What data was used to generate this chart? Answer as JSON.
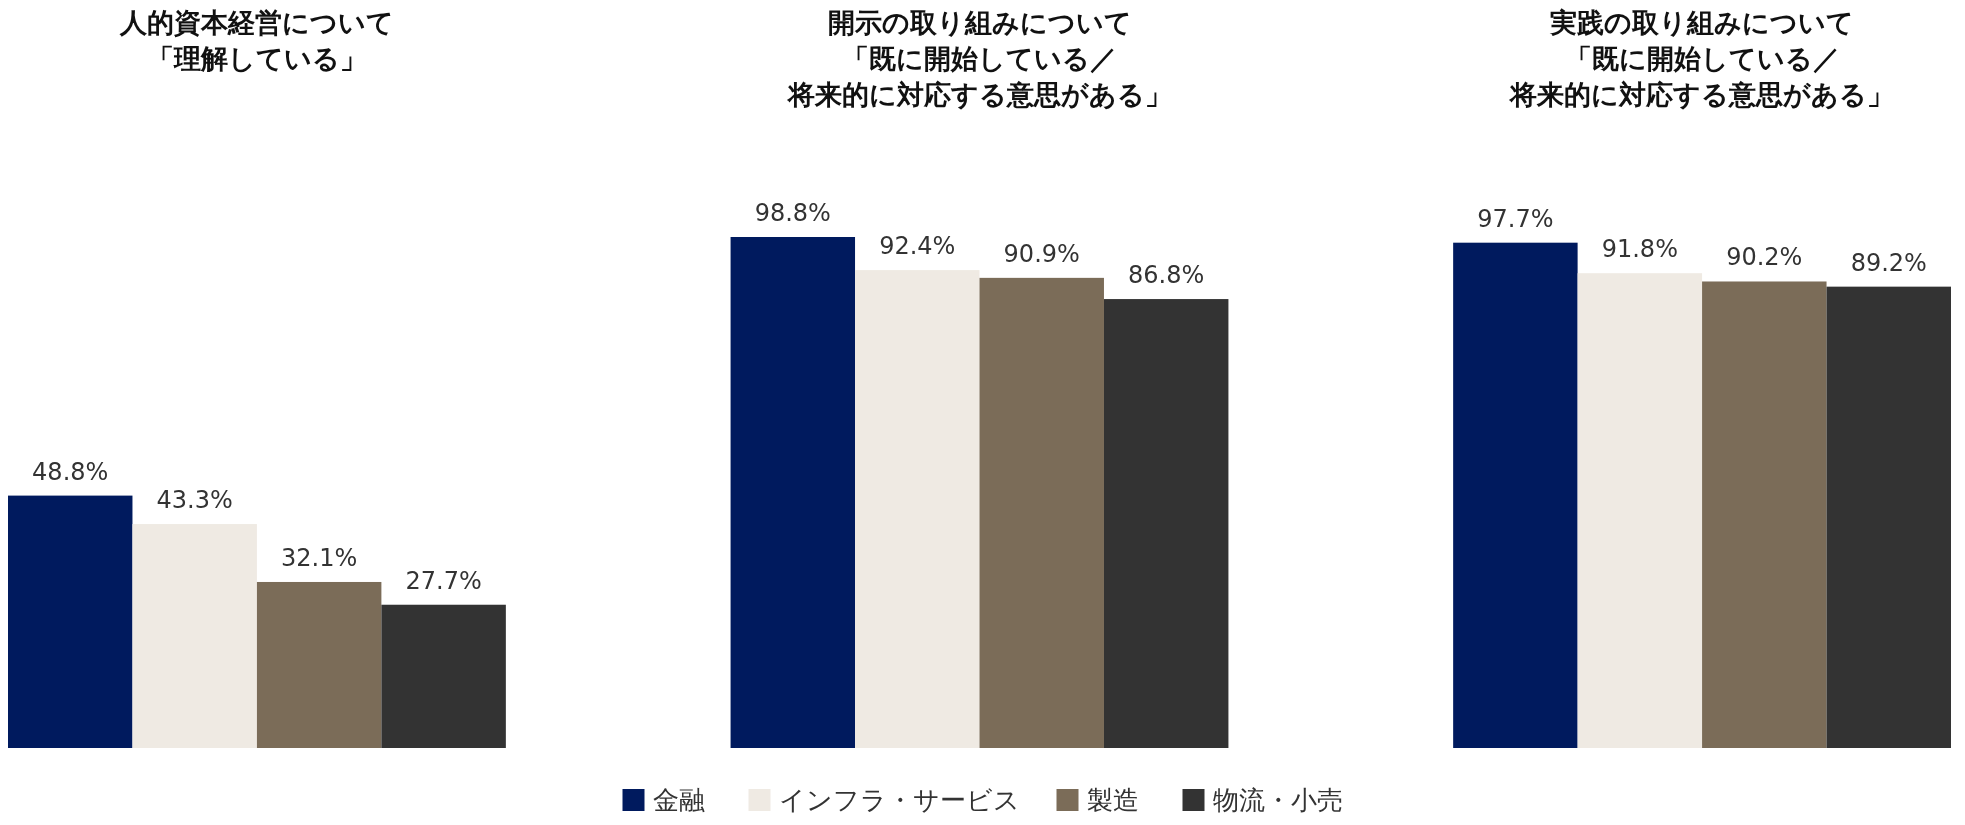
{
  "chart_data": {
    "type": "bar",
    "categories": [
      "人的資本経営について「理解している」",
      "開示の取り組みについて「既に開始している／将来的に対応する意思がある」",
      "実践の取り組みについて「既に開始している／将来的に対応する意思がある」"
    ],
    "series": [
      {
        "name": "金融",
        "color": "#001a5e",
        "values": [
          48.8,
          98.8,
          97.7
        ],
        "value_labels": [
          "48.8%",
          "98.8%",
          "97.7%"
        ]
      },
      {
        "name": "インフラ・サービス",
        "color": "#efeae3",
        "values": [
          43.3,
          92.4,
          91.8
        ],
        "value_labels": [
          "43.3%",
          "92.4%",
          "91.8%"
        ]
      },
      {
        "name": "製造",
        "color": "#7b6c58",
        "values": [
          32.1,
          90.9,
          90.2
        ],
        "value_labels": [
          "32.1%",
          "90.9%",
          "90.2%"
        ]
      },
      {
        "name": "物流・小売",
        "color": "#333333",
        "values": [
          27.7,
          86.8,
          89.2
        ],
        "value_labels": [
          "27.7%",
          "86.8%",
          "89.2%"
        ]
      }
    ],
    "legend": "bottom"
  }
}
